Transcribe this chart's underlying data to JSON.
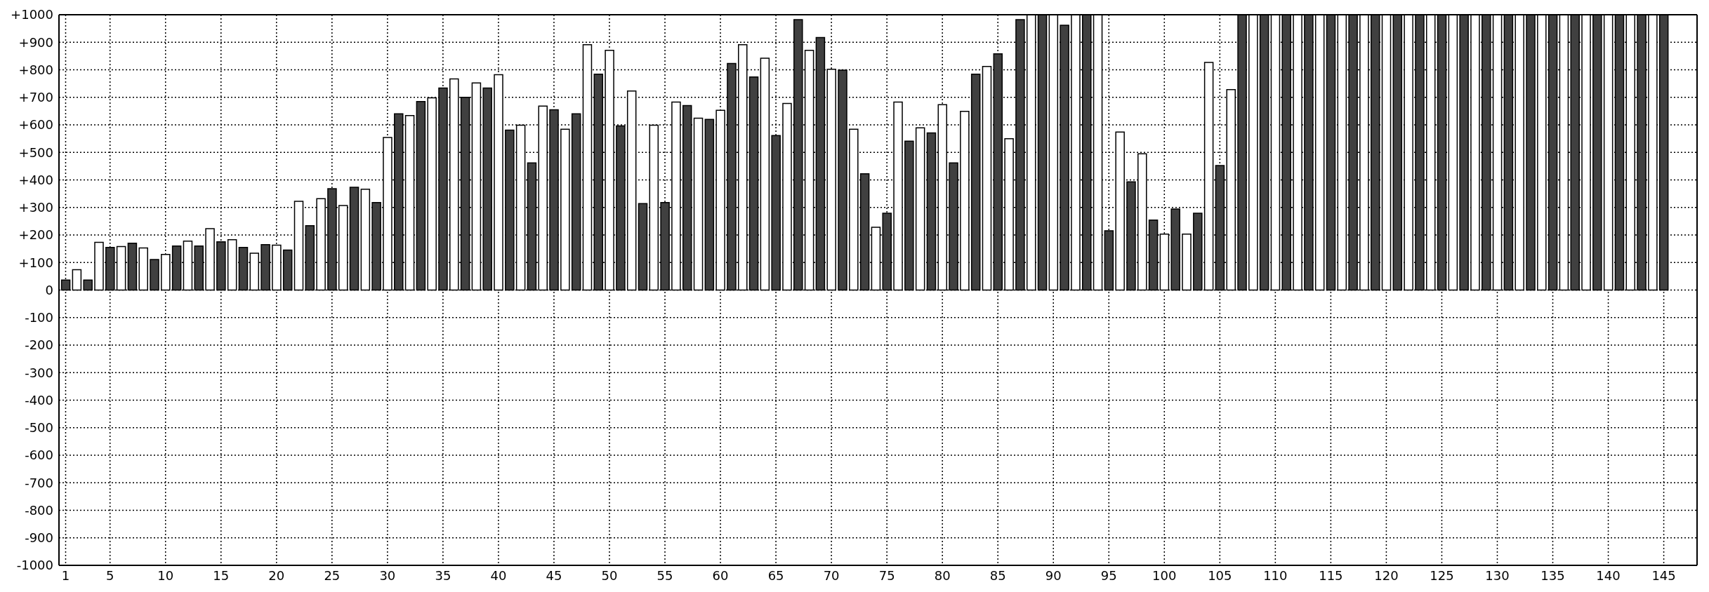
{
  "chart_data": {
    "type": "bar",
    "x": [
      1,
      2,
      3,
      4,
      5,
      6,
      7,
      8,
      9,
      10,
      11,
      12,
      13,
      14,
      15,
      16,
      17,
      18,
      19,
      20,
      21,
      22,
      23,
      24,
      25,
      26,
      27,
      28,
      29,
      30,
      31,
      32,
      33,
      34,
      35,
      36,
      37,
      38,
      39,
      40,
      41,
      42,
      43,
      44,
      45,
      46,
      47,
      48,
      49,
      50,
      51,
      52,
      53,
      54,
      55,
      56,
      57,
      58,
      59,
      60,
      61,
      62,
      63,
      64,
      65,
      66,
      67,
      68,
      69,
      70,
      71,
      72,
      73,
      74,
      75,
      76,
      77,
      78,
      79,
      80,
      81,
      82,
      83,
      84,
      85,
      86,
      87,
      88,
      89,
      90,
      91,
      92,
      93,
      94,
      95,
      96,
      97,
      98,
      99,
      100,
      101,
      102,
      103,
      104,
      105,
      106,
      107,
      108,
      109,
      110,
      111,
      112,
      113,
      114,
      115,
      116,
      117,
      118,
      119,
      120,
      121,
      122,
      123,
      124,
      125,
      126,
      127,
      128,
      129,
      130,
      131,
      132,
      133,
      134,
      135,
      136,
      137,
      138,
      139,
      140,
      141,
      142,
      143,
      144,
      145
    ],
    "values": [
      36,
      74,
      36,
      173,
      155,
      158,
      170,
      153,
      111,
      129,
      160,
      178,
      160,
      223,
      175,
      183,
      155,
      134,
      165,
      163,
      145,
      322,
      234,
      332,
      368,
      307,
      373,
      366,
      318,
      554,
      640,
      634,
      685,
      698,
      734,
      767,
      700,
      752,
      734,
      782,
      581,
      599,
      462,
      668,
      655,
      584,
      640,
      891,
      784,
      871,
      596,
      723,
      314,
      599,
      318,
      683,
      670,
      624,
      620,
      653,
      823,
      891,
      774,
      842,
      561,
      678,
      982,
      871,
      917,
      802,
      799,
      584,
      422,
      228,
      279,
      683,
      541,
      589,
      571,
      673,
      462,
      649,
      784,
      812,
      858,
      550,
      982,
      1000,
      1000,
      1000,
      962,
      1000,
      1000,
      1000,
      215,
      574,
      393,
      495,
      254,
      203,
      294,
      203,
      279,
      827,
      452,
      728,
      1000,
      1000,
      1000,
      1000,
      1000,
      1000,
      1000,
      1000,
      1000,
      1000,
      1000,
      1000,
      1000,
      1000,
      1000,
      1000,
      1000,
      1000,
      1000,
      1000,
      1000,
      1000,
      1000,
      1000,
      1000,
      1000,
      1000,
      1000,
      1000,
      1000,
      1000,
      1000,
      1000,
      1000,
      1000,
      1000,
      1000,
      1000,
      1000
    ],
    "colors": [
      "#404040",
      "#ffffff",
      "#404040",
      "#ffffff",
      "#404040",
      "#ffffff",
      "#404040",
      "#ffffff",
      "#404040",
      "#ffffff",
      "#404040",
      "#ffffff",
      "#404040",
      "#ffffff",
      "#404040",
      "#ffffff",
      "#404040",
      "#ffffff",
      "#404040",
      "#ffffff",
      "#404040",
      "#ffffff",
      "#404040",
      "#ffffff",
      "#404040",
      "#ffffff",
      "#404040",
      "#ffffff",
      "#404040",
      "#ffffff",
      "#404040",
      "#ffffff",
      "#404040",
      "#ffffff",
      "#404040",
      "#ffffff",
      "#404040",
      "#ffffff",
      "#404040",
      "#ffffff",
      "#404040",
      "#ffffff",
      "#404040",
      "#ffffff",
      "#404040",
      "#ffffff",
      "#404040",
      "#ffffff",
      "#404040",
      "#ffffff",
      "#404040",
      "#ffffff",
      "#404040",
      "#ffffff",
      "#404040",
      "#ffffff",
      "#404040",
      "#ffffff",
      "#404040",
      "#ffffff",
      "#404040",
      "#ffffff",
      "#404040",
      "#ffffff",
      "#404040",
      "#ffffff",
      "#404040",
      "#ffffff",
      "#404040",
      "#ffffff",
      "#404040",
      "#ffffff",
      "#404040",
      "#ffffff",
      "#404040",
      "#ffffff",
      "#404040",
      "#ffffff",
      "#404040",
      "#ffffff",
      "#404040",
      "#ffffff",
      "#404040",
      "#ffffff",
      "#404040",
      "#ffffff",
      "#404040",
      "#ffffff",
      "#404040",
      "#ffffff",
      "#404040",
      "#ffffff",
      "#404040",
      "#ffffff",
      "#404040",
      "#ffffff",
      "#404040",
      "#ffffff",
      "#404040",
      "#ffffff",
      "#404040",
      "#ffffff",
      "#404040",
      "#ffffff",
      "#404040",
      "#ffffff",
      "#404040",
      "#ffffff",
      "#404040",
      "#ffffff",
      "#404040",
      "#ffffff",
      "#404040",
      "#ffffff",
      "#404040",
      "#ffffff",
      "#404040",
      "#ffffff",
      "#404040",
      "#ffffff",
      "#404040",
      "#ffffff",
      "#404040",
      "#ffffff",
      "#404040",
      "#ffffff",
      "#404040",
      "#ffffff",
      "#404040",
      "#ffffff",
      "#404040",
      "#ffffff",
      "#404040",
      "#ffffff",
      "#404040",
      "#ffffff",
      "#404040",
      "#ffffff",
      "#404040",
      "#ffffff",
      "#404040",
      "#ffffff",
      "#404040",
      "#ffffff",
      "#404040"
    ],
    "xlim": [
      0.4,
      148
    ],
    "xticks": [
      1,
      5,
      10,
      15,
      20,
      25,
      30,
      35,
      40,
      45,
      50,
      55,
      60,
      65,
      70,
      75,
      80,
      85,
      90,
      95,
      100,
      105,
      110,
      115,
      120,
      125,
      130,
      135,
      140,
      145
    ],
    "ylim": [
      -1000,
      1000
    ],
    "yticks": [
      {
        "value": 1000,
        "label": "+1000"
      },
      {
        "value": 900,
        "label": "+900"
      },
      {
        "value": 800,
        "label": "+800"
      },
      {
        "value": 700,
        "label": "+700"
      },
      {
        "value": 600,
        "label": "+600"
      },
      {
        "value": 500,
        "label": "+500"
      },
      {
        "value": 400,
        "label": "+400"
      },
      {
        "value": 300,
        "label": "+300"
      },
      {
        "value": 200,
        "label": "+200"
      },
      {
        "value": 100,
        "label": "+100"
      },
      0,
      -100,
      -200,
      -300,
      -400,
      -500,
      -600,
      -700,
      -800,
      -900,
      -1000
    ],
    "grid": true
  }
}
